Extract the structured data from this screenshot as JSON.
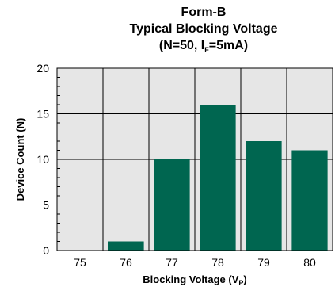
{
  "chart_data": {
    "type": "bar",
    "title_lines": {
      "line1": "Form-B",
      "line2": "Typical Blocking Voltage",
      "line3_pre": "(N=50, I",
      "line3_sub": "F",
      "line3_post": "=5mA)"
    },
    "categories": [
      "75",
      "76",
      "77",
      "78",
      "79",
      "80"
    ],
    "values": [
      0,
      1,
      10,
      16,
      12,
      11
    ],
    "ylabel": "Device Count (N)",
    "xlabel_pre": "Blocking Voltage (V",
    "xlabel_sub": "P",
    "xlabel_post": ")",
    "ylim": [
      0,
      20
    ],
    "yticks": [
      "0",
      "5",
      "10",
      "15",
      "20"
    ],
    "ytick_values": [
      0,
      5,
      10,
      15,
      20
    ],
    "minor_ytick_step": 1,
    "grid": true,
    "colors": {
      "bar": "#006650",
      "plot_background": "#e6e6e6",
      "grid": "#000000"
    }
  }
}
